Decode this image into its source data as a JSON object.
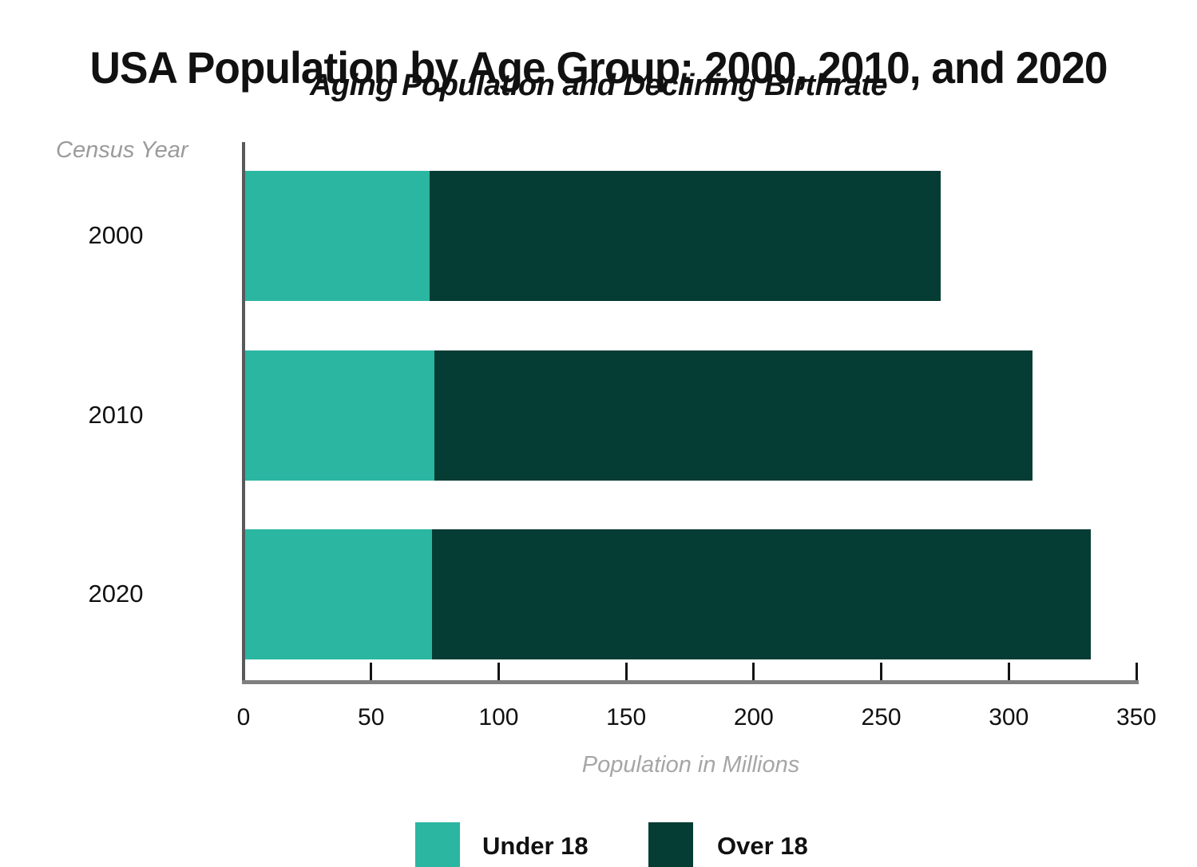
{
  "title": "USA Population by Age Group: 2000, 2010, and 2020",
  "subtitle": "Aging Population and Declining Birthrate",
  "y_axis_label": "Census Year",
  "x_axis_label": "Population in Millions",
  "colors": {
    "under_18": "#2BB6A1",
    "over_18": "#053C33",
    "y_axis_line": "#58595B",
    "x_axis_line": "#7F7F7F",
    "tick": "#141414",
    "muted_label": "#9B9B9B",
    "axis_title": "#A6A6A6",
    "text": "#111111",
    "background": "#FFFFFF"
  },
  "legend": [
    {
      "label": "Under 18",
      "color_key": "under_18"
    },
    {
      "label": "Over 18",
      "color_key": "over_18"
    }
  ],
  "chart_data": {
    "type": "bar",
    "orientation": "horizontal",
    "stacked": true,
    "title": "USA Population by Age Group: 2000, 2010, and 2020",
    "subtitle": "Aging Population and Declining Birthrate",
    "xlabel": "Population in Millions",
    "ylabel": "Census Year",
    "categories": [
      "2000",
      "2010",
      "2020"
    ],
    "series": [
      {
        "name": "Under 18",
        "values": [
          72.3,
          74.2,
          73.1
        ]
      },
      {
        "name": "Over 18",
        "values": [
          200.3,
          234.4,
          258.3
        ]
      }
    ],
    "totals": [
      272.6,
      308.6,
      331.4
    ],
    "xlim": [
      0,
      350
    ],
    "x_ticks": [
      0,
      50,
      100,
      150,
      200,
      250,
      300,
      350
    ],
    "grid": false,
    "legend_position": "bottom"
  }
}
